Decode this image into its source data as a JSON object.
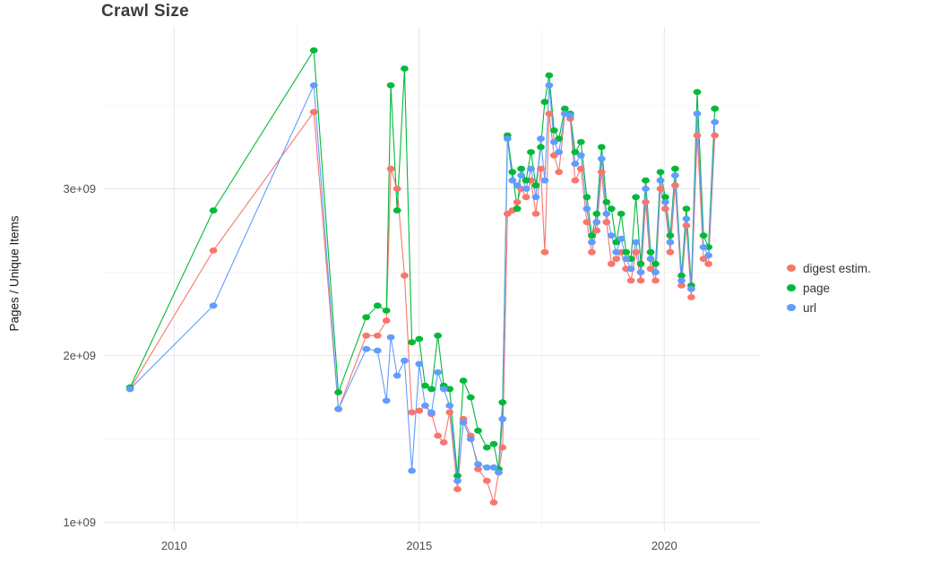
{
  "title": "Crawl Size",
  "chart_data": {
    "type": "line",
    "title": "Crawl Size",
    "xlabel": "",
    "ylabel": "Pages / Unique Items",
    "grid": true,
    "legend_position": "right",
    "x_ticks": [
      2010,
      2015,
      2020
    ],
    "x_tick_labels": [
      "2010",
      "2015",
      "2020"
    ],
    "x_minor_ticks": [
      2012.5,
      2017.5
    ],
    "y_ticks": [
      1000000000.0,
      2000000000.0,
      3000000000.0
    ],
    "y_tick_labels": [
      "1e+09",
      "2e+09",
      "3e+09"
    ],
    "y_minor_ticks": [
      1500000000.0,
      2500000000.0,
      3500000000.0
    ],
    "xlim": [
      2008.55,
      2021.95
    ],
    "ylim": [
      950000000.0,
      3970000000.0
    ],
    "x": [
      2009.1,
      2010.8,
      2012.85,
      2013.35,
      2013.92,
      2014.15,
      2014.33,
      2014.42,
      2014.55,
      2014.7,
      2014.85,
      2015.0,
      2015.12,
      2015.25,
      2015.38,
      2015.5,
      2015.62,
      2015.78,
      2015.9,
      2016.05,
      2016.2,
      2016.38,
      2016.52,
      2016.62,
      2016.7,
      2016.8,
      2016.9,
      2017.0,
      2017.08,
      2017.18,
      2017.28,
      2017.38,
      2017.48,
      2017.56,
      2017.65,
      2017.75,
      2017.85,
      2017.97,
      2018.08,
      2018.18,
      2018.3,
      2018.42,
      2018.52,
      2018.62,
      2018.72,
      2018.82,
      2018.92,
      2019.02,
      2019.12,
      2019.22,
      2019.32,
      2019.42,
      2019.52,
      2019.62,
      2019.72,
      2019.82,
      2019.92,
      2020.02,
      2020.12,
      2020.22,
      2020.35,
      2020.45,
      2020.55,
      2020.67,
      2020.8,
      2020.9,
      2021.03
    ],
    "series": [
      {
        "name": "digest estim.",
        "color": "#F8766D",
        "values": [
          1800000000.0,
          2630000000.0,
          3460000000.0,
          1680000000.0,
          2120000000.0,
          2120000000.0,
          2210000000.0,
          3120000000.0,
          3000000000.0,
          2480000000.0,
          1660000000.0,
          1670000000.0,
          1700000000.0,
          1650000000.0,
          1520000000.0,
          1480000000.0,
          1660000000.0,
          1200000000.0,
          1620000000.0,
          1520000000.0,
          1320000000.0,
          1250000000.0,
          1120000000.0,
          1300000000.0,
          1450000000.0,
          2850000000.0,
          2870000000.0,
          2920000000.0,
          3000000000.0,
          2950000000.0,
          3050000000.0,
          2850000000.0,
          3120000000.0,
          2620000000.0,
          3450000000.0,
          3200000000.0,
          3100000000.0,
          3450000000.0,
          3420000000.0,
          3050000000.0,
          3120000000.0,
          2800000000.0,
          2620000000.0,
          2750000000.0,
          3100000000.0,
          2800000000.0,
          2550000000.0,
          2580000000.0,
          2620000000.0,
          2520000000.0,
          2450000000.0,
          2620000000.0,
          2450000000.0,
          2920000000.0,
          2520000000.0,
          2450000000.0,
          3000000000.0,
          2880000000.0,
          2620000000.0,
          3020000000.0,
          2420000000.0,
          2780000000.0,
          2350000000.0,
          3320000000.0,
          2580000000.0,
          2550000000.0,
          3320000000.0
        ]
      },
      {
        "name": "page",
        "color": "#00BA38",
        "values": [
          1810000000.0,
          2870000000.0,
          3830000000.0,
          1780000000.0,
          2230000000.0,
          2300000000.0,
          2270000000.0,
          3620000000.0,
          2870000000.0,
          3720000000.0,
          2080000000.0,
          2100000000.0,
          1820000000.0,
          1800000000.0,
          2120000000.0,
          1820000000.0,
          1800000000.0,
          1280000000.0,
          1850000000.0,
          1750000000.0,
          1550000000.0,
          1450000000.0,
          1470000000.0,
          1320000000.0,
          1720000000.0,
          3320000000.0,
          3100000000.0,
          2880000000.0,
          3120000000.0,
          3050000000.0,
          3220000000.0,
          3020000000.0,
          3250000000.0,
          3520000000.0,
          3680000000.0,
          3350000000.0,
          3300000000.0,
          3480000000.0,
          3450000000.0,
          3220000000.0,
          3280000000.0,
          2950000000.0,
          2720000000.0,
          2850000000.0,
          3250000000.0,
          2920000000.0,
          2880000000.0,
          2680000000.0,
          2850000000.0,
          2620000000.0,
          2580000000.0,
          2950000000.0,
          2550000000.0,
          3050000000.0,
          2620000000.0,
          2550000000.0,
          3100000000.0,
          2950000000.0,
          2720000000.0,
          3120000000.0,
          2480000000.0,
          2880000000.0,
          2420000000.0,
          3580000000.0,
          2720000000.0,
          2650000000.0,
          3480000000.0
        ]
      },
      {
        "name": "url",
        "color": "#619CFF",
        "values": [
          1800000000.0,
          2300000000.0,
          3620000000.0,
          1680000000.0,
          2040000000.0,
          2030000000.0,
          1730000000.0,
          2110000000.0,
          1880000000.0,
          1970000000.0,
          1310000000.0,
          1950000000.0,
          1700000000.0,
          1660000000.0,
          1900000000.0,
          1800000000.0,
          1700000000.0,
          1250000000.0,
          1600000000.0,
          1500000000.0,
          1350000000.0,
          1330000000.0,
          1330000000.0,
          1300000000.0,
          1620000000.0,
          3300000000.0,
          3050000000.0,
          3020000000.0,
          3080000000.0,
          3000000000.0,
          3120000000.0,
          2950000000.0,
          3300000000.0,
          3050000000.0,
          3620000000.0,
          3280000000.0,
          3220000000.0,
          3450000000.0,
          3440000000.0,
          3150000000.0,
          3200000000.0,
          2880000000.0,
          2680000000.0,
          2800000000.0,
          3180000000.0,
          2850000000.0,
          2720000000.0,
          2620000000.0,
          2700000000.0,
          2580000000.0,
          2520000000.0,
          2680000000.0,
          2500000000.0,
          3000000000.0,
          2580000000.0,
          2500000000.0,
          3050000000.0,
          2920000000.0,
          2680000000.0,
          3080000000.0,
          2450000000.0,
          2820000000.0,
          2400000000.0,
          3450000000.0,
          2650000000.0,
          2600000000.0,
          3400000000.0
        ]
      }
    ]
  }
}
